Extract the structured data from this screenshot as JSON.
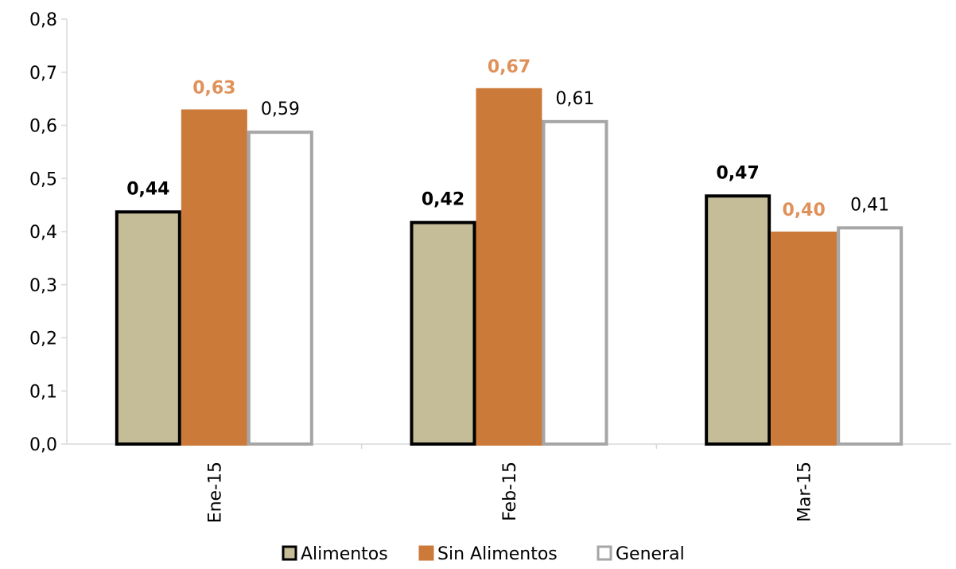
{
  "chart_data": {
    "type": "bar",
    "categories": [
      "Ene-15",
      "Feb-15",
      "Mar-15"
    ],
    "series": [
      {
        "name": "Alimentos",
        "values": [
          0.44,
          0.42,
          0.47
        ],
        "labels": [
          "0,44",
          "0,42",
          "0,47"
        ],
        "fill": "#c4bd97",
        "stroke": "#000000",
        "label_color": "#000000",
        "label_bold": true
      },
      {
        "name": "Sin Alimentos",
        "values": [
          0.63,
          0.67,
          0.4
        ],
        "labels": [
          "0,63",
          "0,67",
          "0,40"
        ],
        "fill": "#cc7a3a",
        "stroke": "#cc7a3a",
        "label_color": "#e0915a",
        "label_bold": true
      },
      {
        "name": "General",
        "values": [
          0.59,
          0.61,
          0.41
        ],
        "labels": [
          "0,59",
          "0,61",
          "0,41"
        ],
        "fill": "#ffffff",
        "stroke": "#a6a6a6",
        "label_color": "#000000",
        "label_bold": false
      }
    ],
    "yticks": [
      "0,0",
      "0,1",
      "0,2",
      "0,3",
      "0,4",
      "0,5",
      "0,6",
      "0,7",
      "0,8"
    ],
    "ylim": [
      0,
      0.8
    ],
    "title": "",
    "xlabel": "",
    "ylabel": "",
    "grid": false,
    "legend_position": "bottom"
  }
}
